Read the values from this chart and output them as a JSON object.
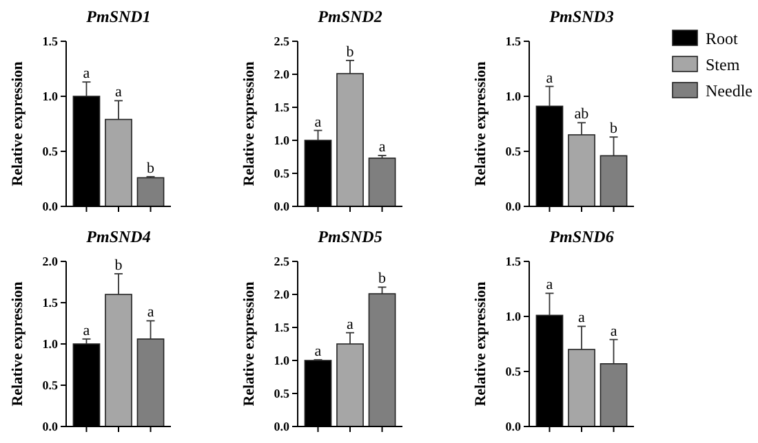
{
  "chart_data": [
    {
      "type": "bar",
      "title": "PmSND1",
      "ylabel": "Relative expression",
      "categories": [
        null
      ],
      "ylim": [
        0,
        1.5
      ],
      "yticks": [
        {
          "value": 0,
          "label": "0.0"
        },
        {
          "value": 0.5,
          "label": "0.5"
        },
        {
          "value": 1,
          "label": "1.0"
        },
        {
          "value": 1.5,
          "label": "1.5"
        }
      ],
      "legend": false,
      "series": [
        {
          "color": "#000000",
          "values": [
            1.0
          ],
          "errors": [
            0.13
          ],
          "value_labels": [
            "a"
          ]
        },
        {
          "color": "#a6a6a6",
          "values": [
            0.79
          ],
          "errors": [
            0.17
          ],
          "value_labels": [
            "a"
          ]
        },
        {
          "color": "#7f7f7f",
          "values": [
            0.26
          ],
          "errors": [
            0.01
          ],
          "value_labels": [
            "b"
          ]
        }
      ]
    },
    {
      "type": "bar",
      "title": "PmSND2",
      "ylabel": "Relative expression",
      "categories": [
        null
      ],
      "ylim": [
        0,
        2.5
      ],
      "yticks": [
        {
          "value": 0,
          "label": "0.0"
        },
        {
          "value": 0.5,
          "label": "0.5"
        },
        {
          "value": 1,
          "label": "1.0"
        },
        {
          "value": 1.5,
          "label": "1.5"
        },
        {
          "value": 2,
          "label": "2.0"
        },
        {
          "value": 2.5,
          "label": "2.5"
        }
      ],
      "legend": false,
      "series": [
        {
          "color": "#000000",
          "values": [
            1.0
          ],
          "errors": [
            0.15
          ],
          "value_labels": [
            "a"
          ]
        },
        {
          "color": "#a6a6a6",
          "values": [
            2.01
          ],
          "errors": [
            0.2
          ],
          "value_labels": [
            "b"
          ]
        },
        {
          "color": "#7f7f7f",
          "values": [
            0.73
          ],
          "errors": [
            0.04
          ],
          "value_labels": [
            "a"
          ]
        }
      ]
    },
    {
      "type": "bar",
      "title": "PmSND3",
      "ylabel": "Relative expression",
      "categories": [
        null
      ],
      "ylim": [
        0,
        1.5
      ],
      "yticks": [
        {
          "value": 0,
          "label": "0.0"
        },
        {
          "value": 0.5,
          "label": "0.5"
        },
        {
          "value": 1,
          "label": "1.0"
        },
        {
          "value": 1.5,
          "label": "1.5"
        }
      ],
      "legend": "right",
      "series": [
        {
          "name": "Root",
          "color": "#000000",
          "values": [
            0.91
          ],
          "errors": [
            0.18
          ],
          "value_labels": [
            "a"
          ]
        },
        {
          "name": "Stem",
          "color": "#a6a6a6",
          "values": [
            0.65
          ],
          "errors": [
            0.11
          ],
          "value_labels": [
            "ab"
          ]
        },
        {
          "name": "Needle",
          "color": "#7f7f7f",
          "values": [
            0.46
          ],
          "errors": [
            0.17
          ],
          "value_labels": [
            "b"
          ]
        }
      ]
    },
    {
      "type": "bar",
      "title": "PmSND4",
      "ylabel": "Relative expression",
      "categories": [
        null
      ],
      "ylim": [
        0,
        2
      ],
      "yticks": [
        {
          "value": 0,
          "label": "0.0"
        },
        {
          "value": 0.5,
          "label": "0.5"
        },
        {
          "value": 1,
          "label": "1.0"
        },
        {
          "value": 1.5,
          "label": "1.5"
        },
        {
          "value": 2,
          "label": "2.0"
        }
      ],
      "legend": false,
      "series": [
        {
          "color": "#000000",
          "values": [
            1.0
          ],
          "errors": [
            0.06
          ],
          "value_labels": [
            "a"
          ]
        },
        {
          "color": "#a6a6a6",
          "values": [
            1.6
          ],
          "errors": [
            0.25
          ],
          "value_labels": [
            "b"
          ]
        },
        {
          "color": "#7f7f7f",
          "values": [
            1.06
          ],
          "errors": [
            0.22
          ],
          "value_labels": [
            "a"
          ]
        }
      ]
    },
    {
      "type": "bar",
      "title": "PmSND5",
      "ylabel": "Relative expression",
      "categories": [
        null
      ],
      "ylim": [
        0,
        2.5
      ],
      "yticks": [
        {
          "value": 0,
          "label": "0.0"
        },
        {
          "value": 0.5,
          "label": "0.5"
        },
        {
          "value": 1,
          "label": "1.0"
        },
        {
          "value": 1.5,
          "label": "1.5"
        },
        {
          "value": 2,
          "label": "2.0"
        },
        {
          "value": 2.5,
          "label": "2.5"
        }
      ],
      "legend": false,
      "series": [
        {
          "color": "#000000",
          "values": [
            1.0
          ],
          "errors": [
            0.01
          ],
          "value_labels": [
            "a"
          ]
        },
        {
          "color": "#a6a6a6",
          "values": [
            1.25
          ],
          "errors": [
            0.17
          ],
          "value_labels": [
            "a"
          ]
        },
        {
          "color": "#7f7f7f",
          "values": [
            2.01
          ],
          "errors": [
            0.1
          ],
          "value_labels": [
            "b"
          ]
        }
      ]
    },
    {
      "type": "bar",
      "title": "PmSND6",
      "ylabel": "Relative expression",
      "categories": [
        null
      ],
      "ylim": [
        0,
        1.5
      ],
      "yticks": [
        {
          "value": 0,
          "label": "0.0"
        },
        {
          "value": 0.5,
          "label": "0.5"
        },
        {
          "value": 1,
          "label": "1.0"
        },
        {
          "value": 1.5,
          "label": "1.5"
        }
      ],
      "legend": false,
      "series": [
        {
          "color": "#000000",
          "values": [
            1.01
          ],
          "errors": [
            0.2
          ],
          "value_labels": [
            "a"
          ]
        },
        {
          "color": "#a6a6a6",
          "values": [
            0.7
          ],
          "errors": [
            0.21
          ],
          "value_labels": [
            "a"
          ]
        },
        {
          "color": "#7f7f7f",
          "values": [
            0.57
          ],
          "errors": [
            0.22
          ],
          "value_labels": [
            "a"
          ]
        }
      ]
    }
  ]
}
